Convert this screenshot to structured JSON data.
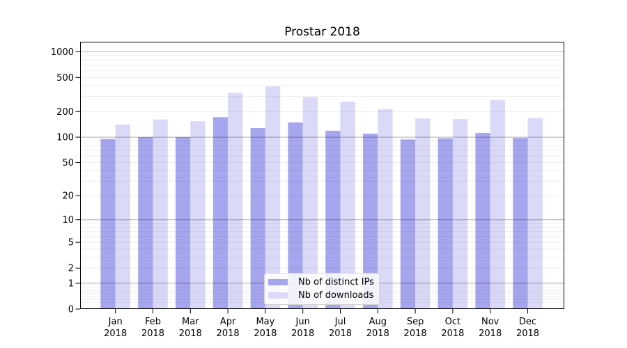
{
  "chart_data": {
    "type": "bar",
    "title": "Prostar 2018",
    "categories": [
      "Jan",
      "Feb",
      "Mar",
      "Apr",
      "May",
      "Jun",
      "Jul",
      "Aug",
      "Sep",
      "Oct",
      "Nov",
      "Dec"
    ],
    "category_year": "2018",
    "series": [
      {
        "name": "Nb of distinct IPs",
        "color": "#a6a6ef",
        "values": [
          95,
          100,
          100,
          172,
          128,
          149,
          119,
          110,
          94,
          97,
          112,
          98
        ]
      },
      {
        "name": "Nb of downloads",
        "color": "#dadaf8",
        "values": [
          141,
          161,
          154,
          331,
          393,
          296,
          261,
          213,
          166,
          163,
          274,
          168
        ]
      }
    ],
    "y_axis": {
      "scale": "log10(value+1)",
      "tick_labels": [
        "0",
        "1",
        "2",
        "5",
        "10",
        "20",
        "50",
        "100",
        "200",
        "500",
        "1000"
      ],
      "tick_values": [
        0,
        1,
        2,
        5,
        10,
        20,
        50,
        100,
        200,
        500,
        1000
      ],
      "major_grid_values": [
        1,
        10,
        100,
        1000
      ],
      "range": [
        0,
        1300
      ],
      "grid": true
    },
    "x_axis": {
      "label_line_2": "2018"
    },
    "legend": {
      "position": "bottom-center",
      "labels": [
        "Nb of distinct IPs",
        "Nb of downloads"
      ]
    },
    "colors": {
      "spine": "#000000",
      "text": "#000000",
      "grid_minor": "rgba(0,0,0,0.07)",
      "grid_major": "rgba(0,0,0,0.32)"
    }
  }
}
